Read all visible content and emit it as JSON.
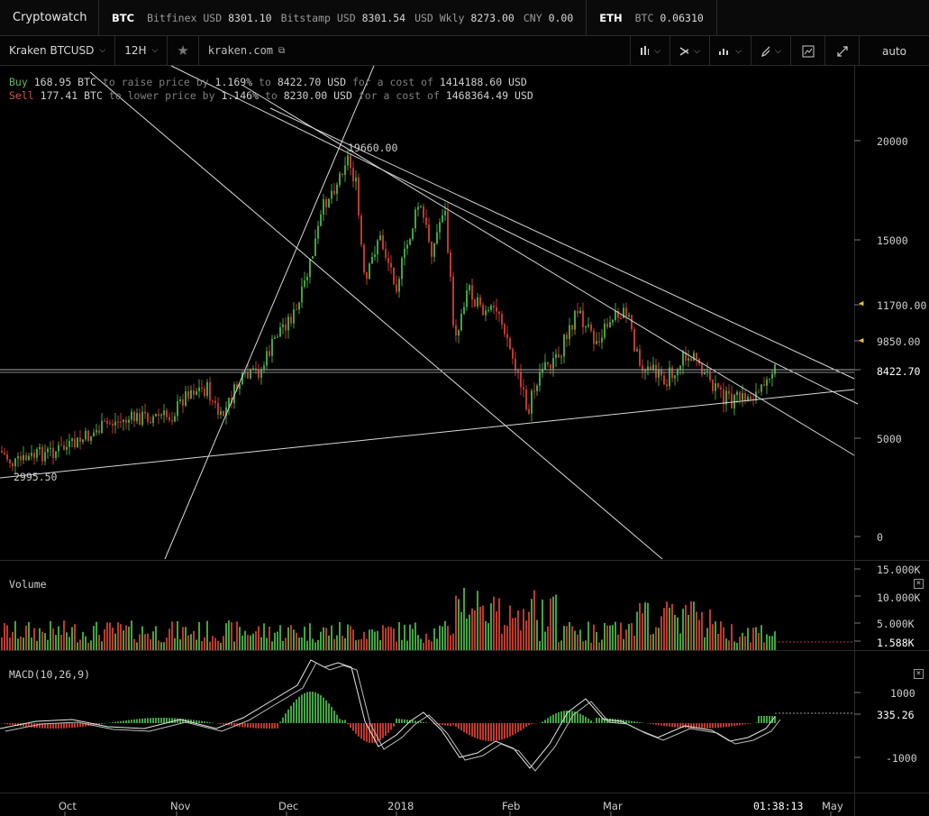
{
  "topbar": {
    "brand": "Cryptowatch",
    "btc_group": {
      "asset": "BTC",
      "tickers": [
        {
          "name": "Bitfinex USD",
          "value": "8301.10"
        },
        {
          "name": "Bitstamp USD",
          "value": "8301.54"
        },
        {
          "name": "USD Wkly",
          "value": "8273.00"
        },
        {
          "name": "CNY",
          "value": "0.00"
        }
      ]
    },
    "eth_group": {
      "asset": "ETH",
      "tickers": [
        {
          "name": "BTC",
          "value": "0.06310"
        }
      ]
    }
  },
  "toolbar": {
    "market": "Kraken BTCUSD",
    "interval": "12H",
    "url": "kraken.com",
    "scale_mode": "auto",
    "icons": [
      "candles-icon",
      "indicators-icon",
      "chart-type-icon",
      "draw-icon",
      "screenshot-icon",
      "fullscreen-icon"
    ]
  },
  "orderbook": {
    "buy": {
      "label": "Buy",
      "amount": "168.95 BTC",
      "t1": "to raise price by",
      "pct": "1.169%",
      "t2": "to",
      "price": "8422.70 USD",
      "t3": "for a cost of",
      "cost": "1414188.60 USD"
    },
    "sell": {
      "label": "Sell",
      "amount": "177.41 BTC",
      "t1": "to lower price by",
      "pct": "1.146%",
      "t2": "to",
      "price": "8230.00 USD",
      "t3": "for a cost of",
      "cost": "1468364.49 USD"
    }
  },
  "price_pane": {
    "high_label": "19660.00",
    "low_label": "2995.50",
    "y_ticks": [
      "20000",
      "15000",
      "11700.00",
      "9850.00",
      "8422.70",
      "5000",
      "0"
    ],
    "current_price": "8422.70",
    "colors": {
      "up": "#3fa63f",
      "down": "#c0392b",
      "marker": "#f0c040"
    }
  },
  "volume_pane": {
    "label": "Volume",
    "y_ticks": [
      "15.000K",
      "10.000K",
      "5.000K",
      "1.588K"
    ]
  },
  "macd_pane": {
    "label": "MACD(10,26,9)",
    "y_ticks": [
      "1000",
      "335.26",
      "-1000"
    ]
  },
  "x_axis": {
    "labels": [
      "Oct",
      "Nov",
      "Dec",
      "2018",
      "Feb",
      "Mar",
      "May"
    ],
    "clock": "01:38:13"
  }
}
